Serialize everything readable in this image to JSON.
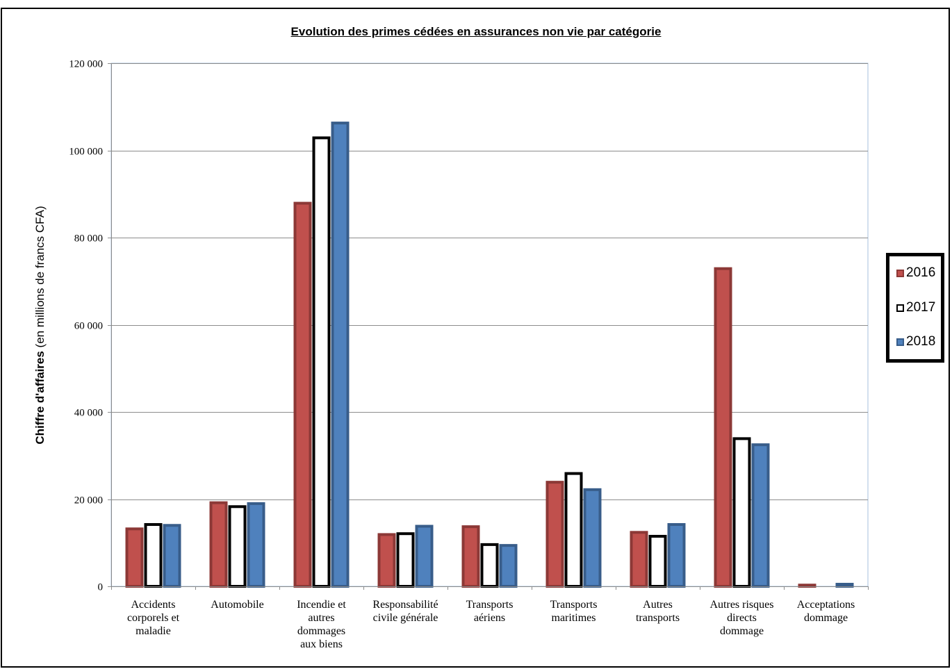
{
  "chart_data": {
    "type": "bar",
    "title": "Evolution des primes cédées en assurances non vie par catégorie",
    "ylabel_bold": "Chiffre d'affaires",
    "ylabel_rest": " (en millions de francs CFA)",
    "ylim": [
      0,
      120000
    ],
    "yticks": [
      0,
      20000,
      40000,
      60000,
      80000,
      100000,
      120000
    ],
    "ytick_labels": [
      "0",
      "20 000",
      "40 000",
      "60 000",
      "80 000",
      "100 000",
      "120 000"
    ],
    "grid": true,
    "legend_position": "right",
    "categories": [
      [
        "Accidents",
        "corporels et",
        "maladie"
      ],
      [
        "Automobile"
      ],
      [
        "Incendie et",
        "autres",
        "dommages",
        "aux biens"
      ],
      [
        "Responsabilité",
        "civile générale"
      ],
      [
        "Transports",
        "aériens"
      ],
      [
        "Transports",
        "maritimes"
      ],
      [
        "Autres",
        "transports"
      ],
      [
        "Autres risques",
        "directs",
        "dommage"
      ],
      [
        "Acceptations",
        "dommage"
      ]
    ],
    "series": [
      {
        "name": "2016",
        "fill": "#c0504d",
        "stroke": "#8c3836",
        "values": [
          13500,
          19500,
          88200,
          12200,
          14000,
          24200,
          12700,
          73200,
          600
        ]
      },
      {
        "name": "2017",
        "fill": "#ffffff",
        "stroke": "#000000",
        "values": [
          14500,
          18600,
          103200,
          12400,
          9900,
          26200,
          11800,
          34200,
          300
        ]
      },
      {
        "name": "2018",
        "fill": "#4f81bd",
        "stroke": "#385d8a",
        "values": [
          14300,
          19300,
          106600,
          14100,
          9700,
          22500,
          14500,
          32800,
          800
        ]
      }
    ]
  }
}
